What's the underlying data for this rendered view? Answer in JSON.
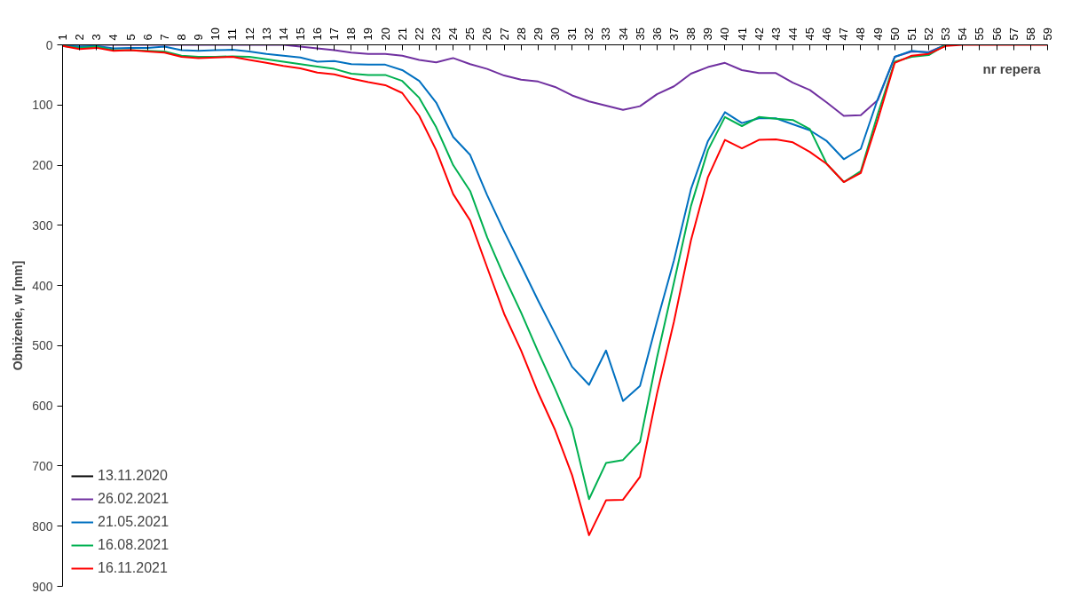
{
  "chart_data": {
    "type": "line",
    "xlabel": "nr repera",
    "ylabel": "Obniżenie, w [mm]",
    "categories": [
      "1",
      "2",
      "3",
      "4",
      "5",
      "6",
      "7",
      "8",
      "9",
      "10",
      "11",
      "12",
      "13",
      "14",
      "15",
      "16",
      "17",
      "18",
      "19",
      "20",
      "21",
      "22",
      "23",
      "24",
      "25",
      "26",
      "27",
      "28",
      "29",
      "30",
      "31",
      "32",
      "33",
      "34",
      "35",
      "36",
      "37",
      "38",
      "39",
      "40",
      "41",
      "42",
      "43",
      "44",
      "45",
      "46",
      "47",
      "48",
      "49",
      "50",
      "51",
      "52",
      "53",
      "54",
      "55",
      "56",
      "57",
      "58",
      "59"
    ],
    "ylim": [
      900,
      0
    ],
    "yticks": [
      0,
      100,
      200,
      300,
      400,
      500,
      600,
      700,
      800,
      900
    ],
    "grid": false,
    "legend": "bottom left",
    "marker": "none",
    "line_style": "solid",
    "series": [
      {
        "name": "13.11.2020",
        "color": "#000000",
        "values": [
          null,
          null,
          null,
          null,
          null,
          null,
          null,
          null,
          null,
          null,
          null,
          null,
          null,
          null,
          null,
          null,
          null,
          null,
          null,
          null,
          null,
          null,
          null,
          null,
          null,
          null,
          null,
          null,
          null,
          null,
          null,
          null,
          null,
          null,
          null,
          null,
          null,
          null,
          null,
          null,
          null,
          null,
          null,
          null,
          null,
          null,
          null,
          null,
          null,
          null,
          null,
          null,
          null,
          null,
          null,
          null,
          null,
          null,
          null
        ]
      },
      {
        "name": "26.02.2021",
        "color": "#7030a0",
        "values": [
          0,
          0,
          0,
          0,
          0,
          0,
          0,
          0,
          0,
          0,
          0,
          0,
          0,
          0,
          3,
          6,
          9,
          13,
          15,
          15,
          18,
          25,
          29,
          22,
          32,
          40,
          51,
          58,
          61,
          70,
          84,
          94,
          101,
          108,
          102,
          82,
          69,
          48,
          37,
          30,
          42,
          47,
          47,
          63,
          75,
          96,
          118,
          117,
          92,
          20,
          11,
          12,
          0,
          null,
          null,
          null,
          null,
          null,
          null
        ]
      },
      {
        "name": "21.05.2021",
        "color": "#0070c0",
        "values": [
          1,
          3,
          2,
          6,
          5,
          5,
          3,
          9,
          10,
          9,
          8,
          11,
          15,
          18,
          21,
          28,
          27,
          32,
          33,
          33,
          42,
          60,
          96,
          153,
          183,
          250,
          310,
          367,
          425,
          480,
          535,
          565,
          508,
          592,
          567,
          460,
          358,
          240,
          160,
          112,
          130,
          122,
          122,
          132,
          142,
          160,
          190,
          173,
          90,
          20,
          10,
          13,
          0,
          null,
          null,
          null,
          null,
          null,
          null
        ]
      },
      {
        "name": "16.08.2021",
        "color": "#00b050",
        "values": [
          2,
          5,
          3,
          9,
          9,
          10,
          11,
          18,
          20,
          20,
          19,
          20,
          24,
          28,
          32,
          36,
          40,
          48,
          50,
          50,
          60,
          88,
          137,
          200,
          243,
          320,
          385,
          445,
          510,
          572,
          638,
          755,
          695,
          690,
          660,
          520,
          395,
          268,
          175,
          120,
          135,
          120,
          123,
          125,
          140,
          198,
          228,
          210,
          115,
          28,
          20,
          17,
          0,
          null,
          null,
          null,
          null,
          null,
          null
        ]
      },
      {
        "name": "16.11.2021",
        "color": "#ff0000",
        "values": [
          2,
          7,
          5,
          10,
          9,
          11,
          13,
          20,
          22,
          21,
          20,
          25,
          30,
          35,
          39,
          46,
          49,
          56,
          62,
          67,
          80,
          118,
          175,
          248,
          292,
          370,
          447,
          508,
          578,
          640,
          715,
          815,
          757,
          756,
          718,
          580,
          460,
          325,
          220,
          158,
          172,
          158,
          157,
          162,
          178,
          198,
          228,
          213,
          125,
          30,
          18,
          15,
          2,
          0,
          0,
          0,
          0,
          0,
          0
        ]
      }
    ]
  }
}
